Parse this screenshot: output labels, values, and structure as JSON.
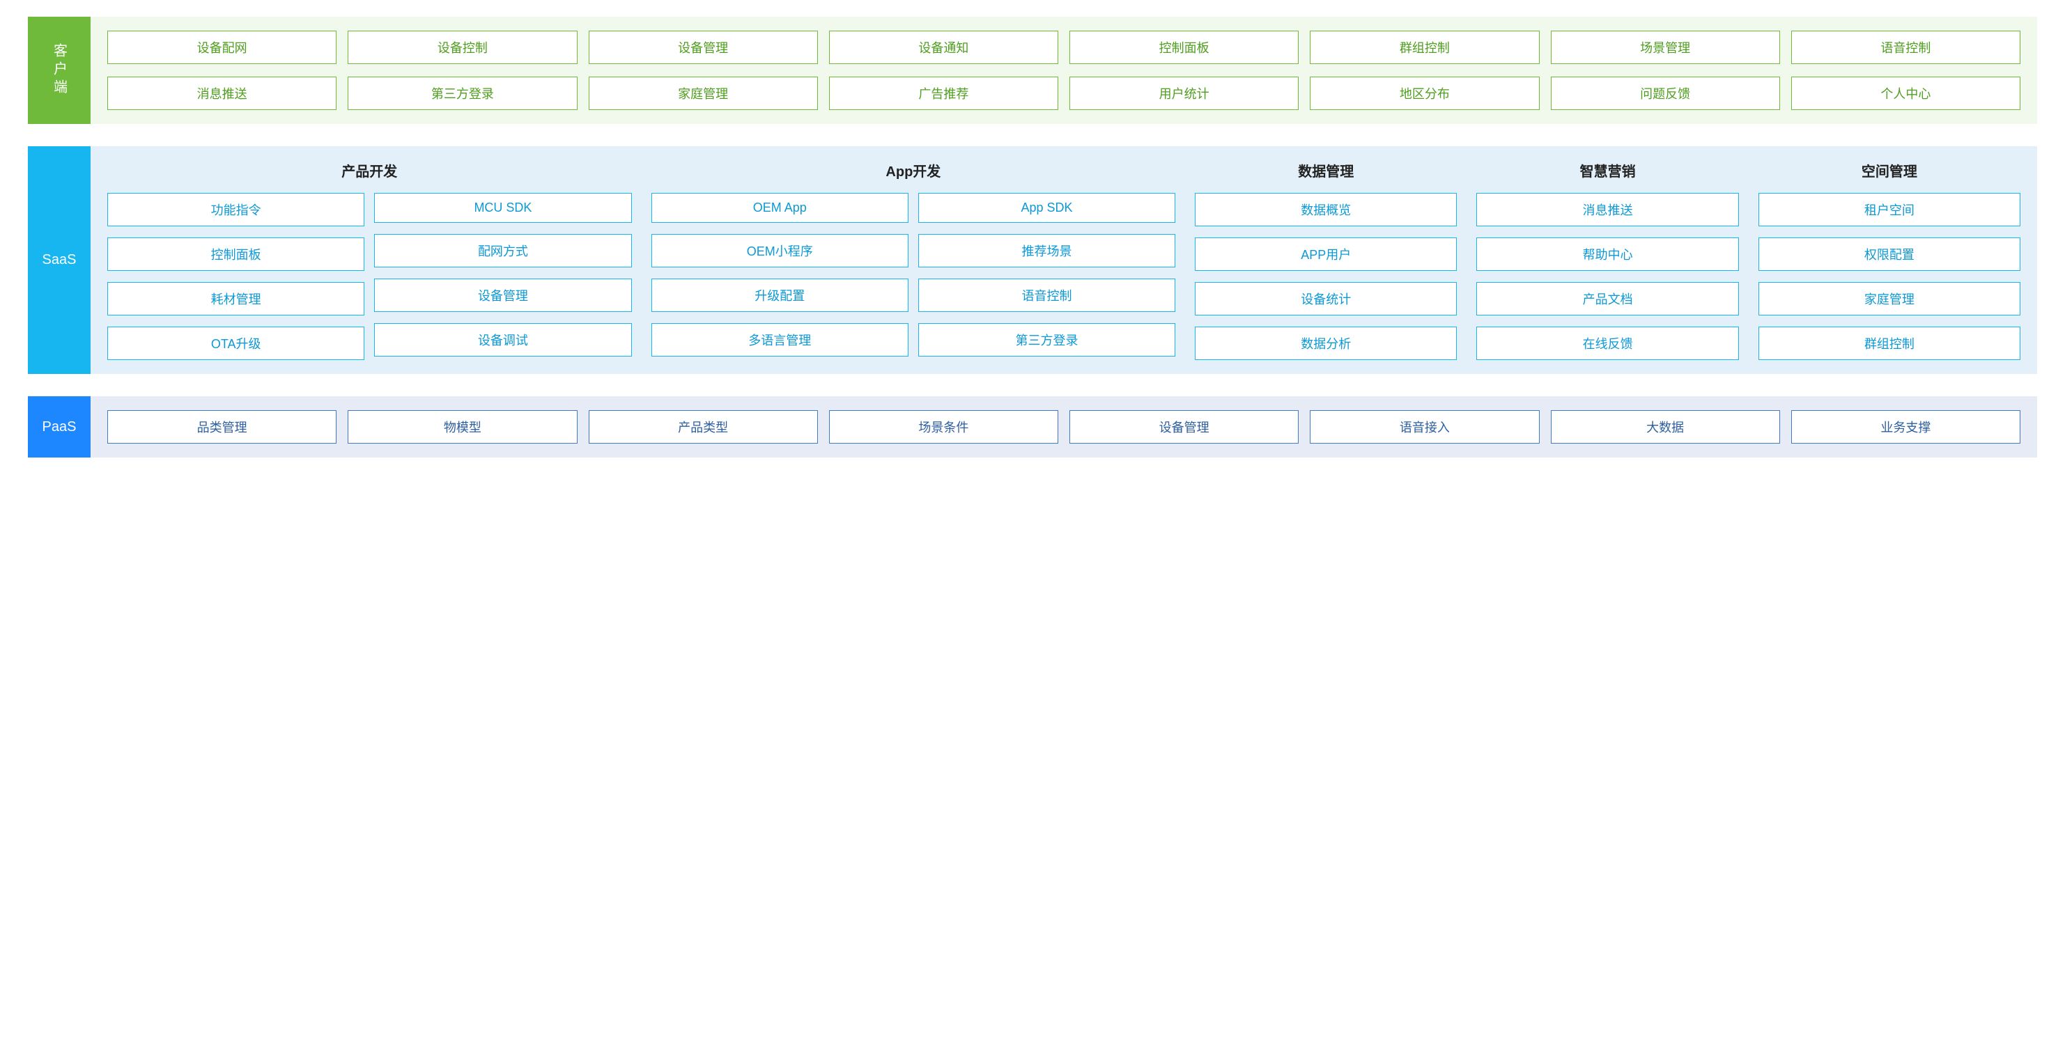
{
  "layers": {
    "client": {
      "label": "客户端",
      "label_bg": "#6fba3a",
      "body_bg": "#f1f8ec",
      "box_border": "#6fba3a",
      "box_text": "#4f9e1f",
      "rows": [
        [
          "设备配网",
          "设备控制",
          "设备管理",
          "设备通知",
          "控制面板",
          "群组控制",
          "场景管理",
          "语音控制"
        ],
        [
          "消息推送",
          "第三方登录",
          "家庭管理",
          "广告推荐",
          "用户统计",
          "地区分布",
          "问题反馈",
          "个人中心"
        ]
      ]
    },
    "saas": {
      "label": "SaaS",
      "label_bg": "#18b6f0",
      "body_bg": "#e3f0f9",
      "box_border": "#18b6f0",
      "box_text": "#0d99d6",
      "groups": [
        {
          "title": "产品开发",
          "cols": [
            [
              "功能指令",
              "控制面板",
              "耗材管理",
              "OTA升级"
            ],
            [
              "MCU SDK",
              "配网方式",
              "设备管理",
              "设备调试"
            ]
          ],
          "flex": 2
        },
        {
          "title": "App开发",
          "cols": [
            [
              "OEM App",
              "OEM小程序",
              "升级配置",
              "多语言管理"
            ],
            [
              "App SDK",
              "推荐场景",
              "语音控制",
              "第三方登录"
            ]
          ],
          "flex": 2
        },
        {
          "title": "数据管理",
          "cols": [
            [
              "数据概览",
              "APP用户",
              "设备统计",
              "数据分析"
            ]
          ],
          "flex": 1
        },
        {
          "title": "智慧营销",
          "cols": [
            [
              "消息推送",
              "帮助中心",
              "产品文档",
              "在线反馈"
            ]
          ],
          "flex": 1
        },
        {
          "title": "空间管理",
          "cols": [
            [
              "租户空间",
              "权限配置",
              "家庭管理",
              "群组控制"
            ]
          ],
          "flex": 1
        }
      ]
    },
    "paas": {
      "label": "PaaS",
      "label_bg": "#1d87ff",
      "body_bg": "#e7ebf6",
      "box_border": "#3d7cc9",
      "box_text": "#2d5fa0",
      "rows": [
        [
          "品类管理",
          "物模型",
          "产品类型",
          "场景条件",
          "设备管理",
          "语音接入",
          "大数据",
          "业务支撑"
        ]
      ]
    }
  }
}
